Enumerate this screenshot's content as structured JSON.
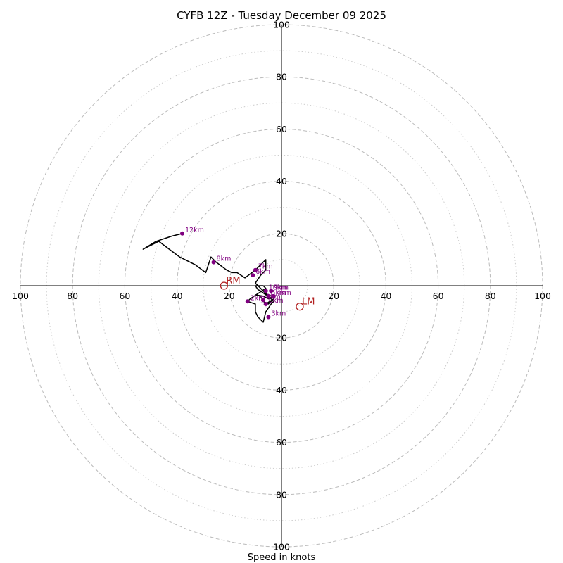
{
  "chart_data": {
    "type": "hodograph",
    "title": "CYFB 12Z - Tuesday December 09 2025",
    "xlabel": "Speed in knots",
    "max_speed": 100,
    "ring_major": [
      20,
      40,
      60,
      80,
      100
    ],
    "ring_minor": [
      10,
      30,
      50,
      70,
      90
    ],
    "axis_ticks": {
      "right": [
        "20",
        "40",
        "60",
        "80",
        "100"
      ],
      "left": [
        "100",
        "80",
        "60",
        "40",
        "20"
      ],
      "top": [
        "20",
        "40",
        "60",
        "80",
        "100"
      ],
      "bottom": [
        "20",
        "40",
        "60",
        "80",
        "100"
      ]
    },
    "colors": {
      "trace": "#000000",
      "markers": "#800080",
      "motion": "#b22222",
      "grid": "#bbbbbb"
    },
    "trace": [
      [
        -6,
        -7
      ],
      [
        -3,
        -5
      ],
      [
        -5,
        -7
      ],
      [
        -7,
        -6
      ],
      [
        -8,
        -4
      ],
      [
        -10,
        -3.5
      ],
      [
        -7,
        -4
      ],
      [
        -5,
        -5
      ],
      [
        -3,
        -4
      ],
      [
        -6,
        -3.5
      ],
      [
        -8,
        -2
      ],
      [
        -9,
        -1.5
      ],
      [
        -10,
        0
      ],
      [
        -7,
        0
      ],
      [
        -6,
        -1
      ],
      [
        -9,
        -3
      ],
      [
        -12,
        -5
      ],
      [
        -13,
        -6
      ],
      [
        -10,
        -7
      ],
      [
        -10,
        -10
      ],
      [
        -9,
        -12
      ],
      [
        -7,
        -14
      ],
      [
        -6,
        -10
      ],
      [
        -4,
        -7
      ],
      [
        -3,
        -6
      ],
      [
        -6,
        -3
      ],
      [
        -8,
        -1
      ],
      [
        -10,
        1
      ],
      [
        -8,
        4
      ],
      [
        -6,
        6
      ],
      [
        -6,
        10
      ],
      [
        -10,
        6
      ],
      [
        -14,
        3
      ],
      [
        -17,
        5
      ],
      [
        -19,
        5
      ],
      [
        -21,
        6
      ],
      [
        -25,
        9
      ],
      [
        -27,
        11
      ],
      [
        -29,
        5
      ],
      [
        -33,
        8
      ],
      [
        -39,
        11
      ],
      [
        -43,
        14
      ],
      [
        -47,
        17
      ],
      [
        -53,
        14
      ],
      [
        -48,
        17
      ],
      [
        -42,
        19
      ],
      [
        -38,
        20
      ]
    ],
    "height_markers": [
      {
        "label": "0km",
        "u": -6,
        "v": -7
      },
      {
        "label": "1km",
        "u": -7,
        "v": -5.5
      },
      {
        "label": "2km",
        "u": -13,
        "v": -6
      },
      {
        "label": "3km",
        "u": -5,
        "v": -12
      },
      {
        "label": "4km",
        "u": -3,
        "v": -4
      },
      {
        "label": "5km",
        "u": -5,
        "v": -4
      },
      {
        "label": "6km",
        "u": -11,
        "v": 4
      },
      {
        "label": "7km",
        "u": -10,
        "v": 6
      },
      {
        "label": "8km",
        "u": -26,
        "v": 9
      },
      {
        "label": "12km",
        "u": -38,
        "v": 20
      },
      {
        "label": "9km",
        "u": -4,
        "v": -2
      },
      {
        "label": "10km",
        "u": -6,
        "v": -2
      }
    ],
    "storm_motion": [
      {
        "label": "RM",
        "u": -22,
        "v": 0
      },
      {
        "label": "LM",
        "u": 7,
        "v": -8
      }
    ]
  }
}
